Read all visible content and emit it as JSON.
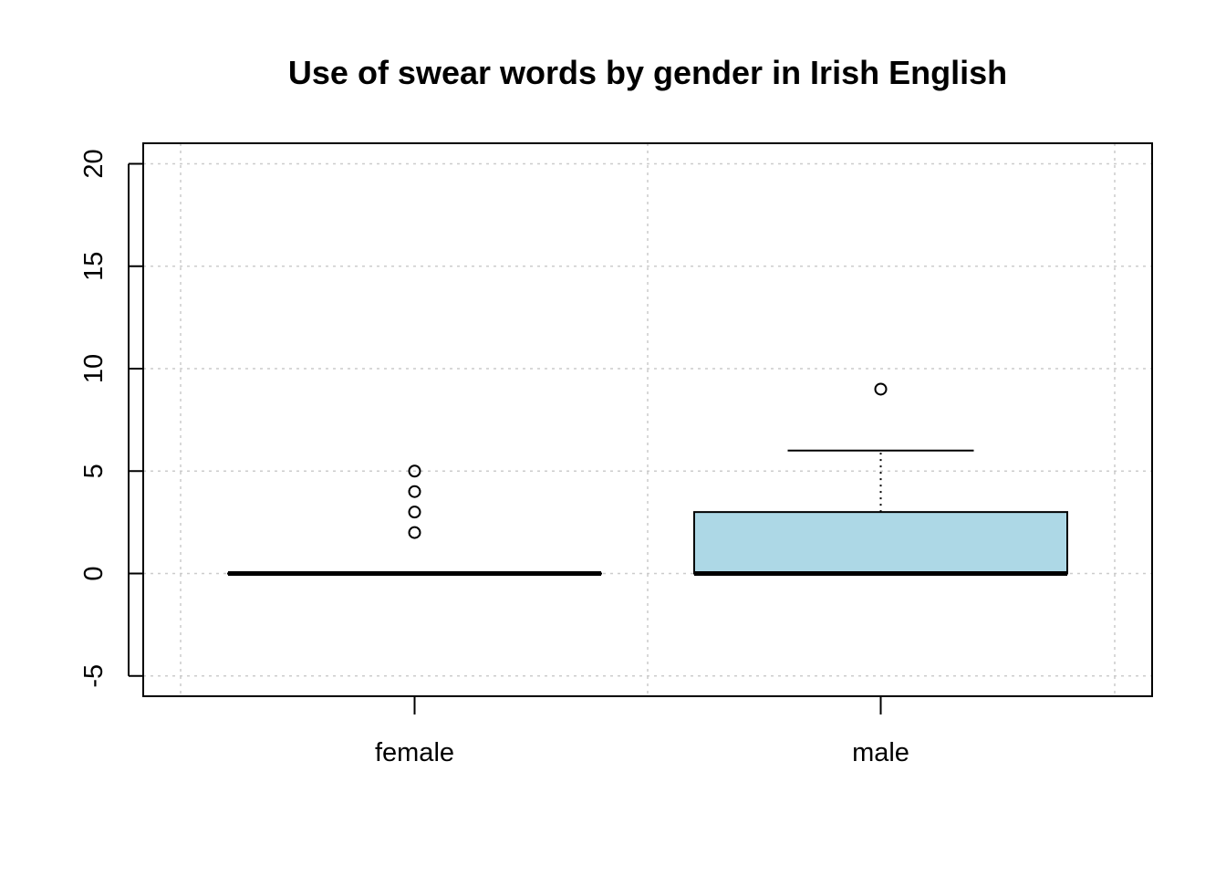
{
  "chart_data": {
    "type": "boxplot",
    "title": "Use of swear words by gender in Irish English",
    "xlabel": "",
    "ylabel": "",
    "ylim": [
      -6,
      21
    ],
    "yticks": [
      -5,
      0,
      5,
      10,
      15,
      20
    ],
    "categories": [
      "female",
      "male"
    ],
    "grid": true,
    "box_color": "#add8e6",
    "boxes": [
      {
        "category": "female",
        "min": 0,
        "q1": 0,
        "median": 0,
        "q3": 0,
        "max": 0,
        "outliers": [
          2,
          3,
          4,
          5
        ]
      },
      {
        "category": "male",
        "min": 0,
        "q1": 0,
        "median": 0,
        "q3": 3,
        "max": 6,
        "outliers": [
          9
        ]
      }
    ]
  }
}
